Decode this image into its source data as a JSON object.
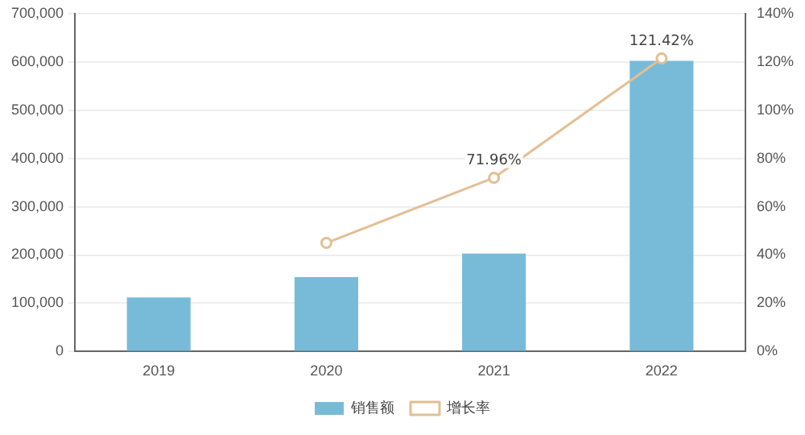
{
  "chart_data": {
    "type": "bar",
    "categories": [
      "2019",
      "2020",
      "2021",
      "2022"
    ],
    "series": [
      {
        "name": "销售额",
        "color": "#78bbd9",
        "values": [
          112000,
          154000,
          203000,
          602000
        ]
      },
      {
        "name": "增长率",
        "type": "line",
        "axis": "y2",
        "color": "#e2bf94",
        "values": [
          null,
          45,
          71.96,
          121.42
        ],
        "value_labels": [
          null,
          null,
          "71.96%",
          "121.42%"
        ]
      }
    ],
    "ylim": [
      0,
      700000
    ],
    "yticks": [
      {
        "value": 0,
        "label": "0"
      },
      {
        "value": 100000,
        "label": "100,000"
      },
      {
        "value": 200000,
        "label": "200,000"
      },
      {
        "value": 300000,
        "label": "300,000"
      },
      {
        "value": 400000,
        "label": "400,000"
      },
      {
        "value": 500000,
        "label": "500,000"
      },
      {
        "value": 600000,
        "label": "600,000"
      },
      {
        "value": 700000,
        "label": "700,000"
      }
    ],
    "y2lim": [
      0,
      140
    ],
    "y2ticks": [
      {
        "value": 0,
        "label": "0%"
      },
      {
        "value": 20,
        "label": "20%"
      },
      {
        "value": 40,
        "label": "40%"
      },
      {
        "value": 60,
        "label": "60%"
      },
      {
        "value": 80,
        "label": "80%"
      },
      {
        "value": 100,
        "label": "100%"
      },
      {
        "value": 120,
        "label": "120%"
      },
      {
        "value": 140,
        "label": "140%"
      }
    ],
    "grid": "y",
    "legend": "bottom",
    "marker": "circle"
  }
}
